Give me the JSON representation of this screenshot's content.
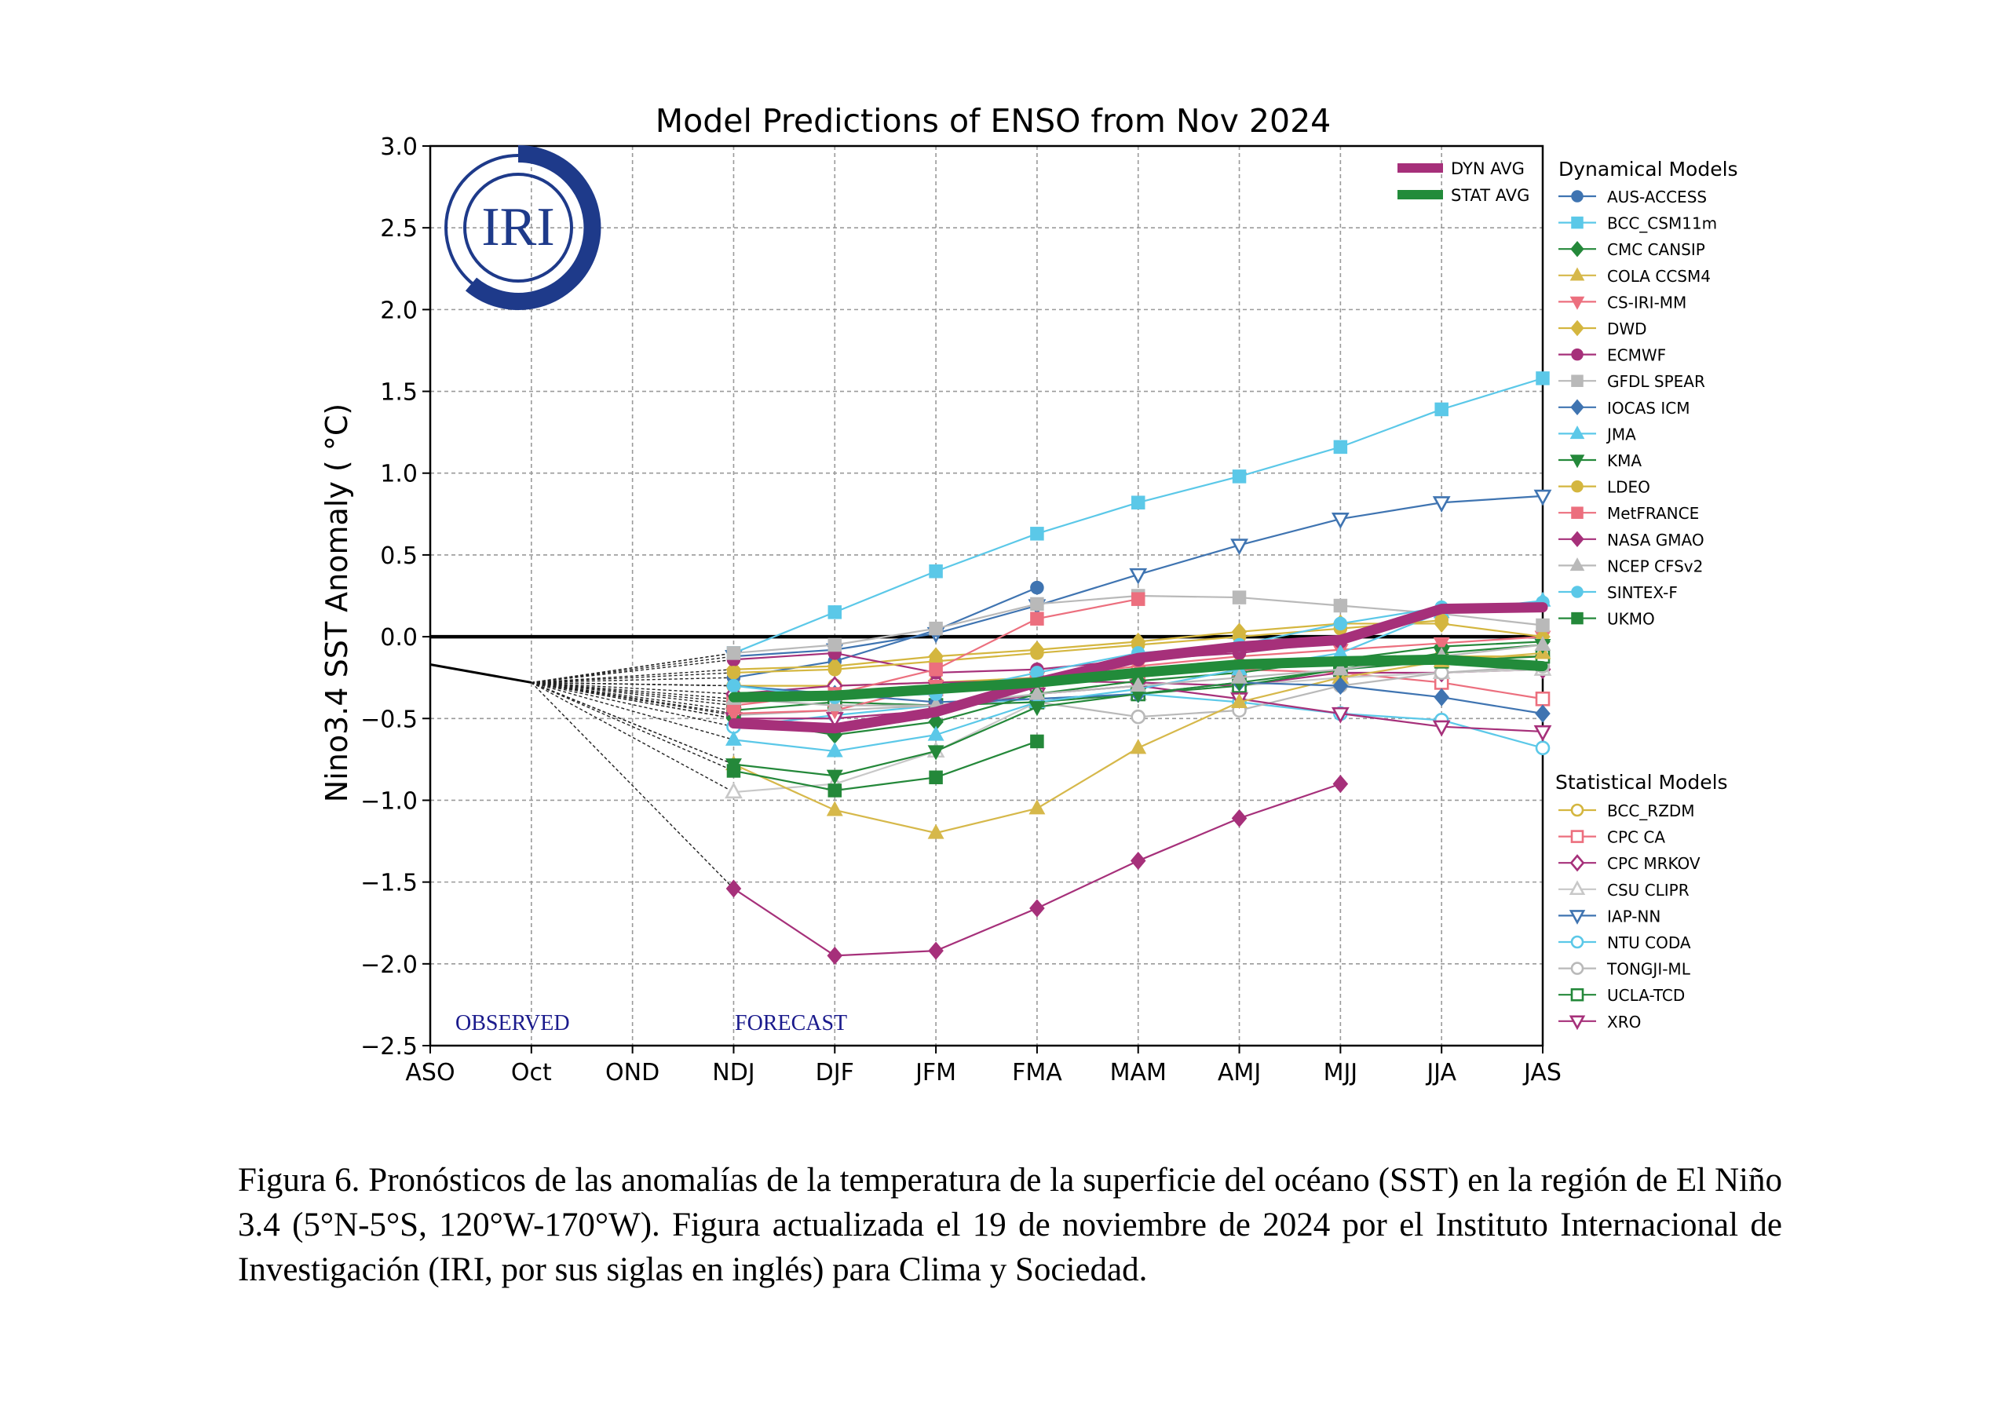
{
  "chart_data": {
    "type": "line",
    "title": "Model Predictions of ENSO from Nov 2024",
    "ylabel": "Nino3.4 SST Anomaly ( °C)",
    "xlabel": "",
    "categories": [
      "ASO",
      "Oct",
      "OND",
      "NDJ",
      "DJF",
      "JFM",
      "FMA",
      "MAM",
      "AMJ",
      "MJJ",
      "JJA",
      "JAS"
    ],
    "ylim": [
      -2.5,
      3.0
    ],
    "yticks": [
      3.0,
      2.5,
      2.0,
      1.5,
      1.0,
      0.5,
      0.0,
      -0.5,
      -1.0,
      -1.5,
      -2.0,
      -2.5
    ],
    "ytick_labels": [
      "3.0",
      "2.5",
      "2.0",
      "1.5",
      "1.0",
      "0.5",
      "0.0",
      "−0.5",
      "−1.0",
      "−1.5",
      "−2.0",
      "−2.5"
    ],
    "grid": true,
    "annotations": {
      "observed": "OBSERVED",
      "forecast": "FORECAST",
      "logo": "IRI"
    },
    "observed": [
      -0.17,
      -0.28
    ],
    "avg_series": [
      {
        "name": "DYN AVG",
        "color": "#a6307a",
        "values": [
          null,
          null,
          null,
          -0.53,
          -0.56,
          -0.46,
          -0.28,
          -0.13,
          -0.06,
          -0.02,
          0.17,
          0.18
        ]
      },
      {
        "name": "STAT AVG",
        "color": "#228b3a",
        "values": [
          null,
          null,
          null,
          -0.37,
          -0.36,
          -0.32,
          -0.28,
          -0.22,
          -0.17,
          -0.15,
          -0.14,
          -0.18
        ]
      }
    ],
    "legend_dynamical_title": "Dynamical Models",
    "legend_statistical_title": "Statistical Models",
    "dynamical": [
      {
        "name": "AUS-ACCESS",
        "color": "#3f74b1",
        "marker": "circle",
        "filled": true,
        "values": [
          null,
          null,
          null,
          -0.25,
          -0.15,
          0.04,
          0.3,
          null,
          null,
          null,
          null,
          null
        ]
      },
      {
        "name": "BCC_CSM11m",
        "color": "#5bc8e8",
        "marker": "square",
        "filled": true,
        "values": [
          null,
          null,
          null,
          -0.1,
          0.15,
          0.4,
          0.63,
          0.82,
          0.98,
          1.16,
          1.39,
          1.58
        ]
      },
      {
        "name": "CMC CANSIP",
        "color": "#24883a",
        "marker": "diamond",
        "filled": true,
        "values": [
          null,
          null,
          null,
          -0.5,
          -0.6,
          -0.52,
          -0.35,
          -0.27,
          -0.22,
          -0.14,
          -0.06,
          -0.03
        ]
      },
      {
        "name": "COLA CCSM4",
        "color": "#d6b84a",
        "marker": "triangle",
        "filled": true,
        "values": [
          null,
          null,
          null,
          -0.78,
          -1.06,
          -1.2,
          -1.05,
          -0.68,
          -0.4,
          -0.25,
          -0.15,
          -0.1
        ]
      },
      {
        "name": "CS-IRI-MM",
        "color": "#ec6f7e",
        "marker": "triangle-down",
        "filled": true,
        "values": [
          null,
          null,
          null,
          -0.47,
          -0.45,
          -0.3,
          -0.25,
          -0.18,
          -0.12,
          -0.08,
          -0.04,
          0.0
        ]
      },
      {
        "name": "DWD",
        "color": "#d4b63f",
        "marker": "diamond",
        "filled": true,
        "values": [
          null,
          null,
          null,
          -0.2,
          -0.18,
          -0.12,
          -0.08,
          -0.03,
          0.03,
          0.08,
          0.08,
          0.0
        ]
      },
      {
        "name": "ECMWF",
        "color": "#a6307a",
        "marker": "circle",
        "filled": true,
        "values": [
          null,
          null,
          null,
          -0.14,
          -0.1,
          -0.22,
          -0.2,
          -0.14,
          -0.1,
          -0.03,
          null,
          null
        ]
      },
      {
        "name": "GFDL SPEAR",
        "color": "#b9b9b9",
        "marker": "square",
        "filled": true,
        "values": [
          null,
          null,
          null,
          -0.1,
          -0.05,
          0.05,
          0.2,
          0.25,
          0.24,
          0.19,
          0.14,
          0.07
        ]
      },
      {
        "name": "IOCAS ICM",
        "color": "#3f74b1",
        "marker": "diamond",
        "filled": true,
        "values": [
          null,
          null,
          null,
          -0.3,
          -0.35,
          -0.4,
          -0.38,
          -0.35,
          -0.28,
          -0.3,
          -0.37,
          -0.47
        ]
      },
      {
        "name": "JMA",
        "color": "#5bc8e8",
        "marker": "triangle",
        "filled": true,
        "values": [
          null,
          null,
          null,
          -0.63,
          -0.7,
          -0.6,
          -0.4,
          -0.32,
          -0.2,
          -0.1,
          0.15,
          0.22
        ]
      },
      {
        "name": "KMA",
        "color": "#24883a",
        "marker": "triangle-down",
        "filled": true,
        "values": [
          null,
          null,
          null,
          -0.78,
          -0.85,
          -0.7,
          -0.43,
          -0.35,
          -0.28,
          -0.2,
          -0.1,
          -0.05
        ]
      },
      {
        "name": "LDEO",
        "color": "#d4b63f",
        "marker": "circle",
        "filled": true,
        "values": [
          null,
          null,
          null,
          -0.22,
          -0.2,
          -0.15,
          -0.1,
          -0.05,
          0.0,
          0.05,
          0.1,
          null
        ]
      },
      {
        "name": "MetFRANCE",
        "color": "#ec6f7e",
        "marker": "square",
        "filled": true,
        "values": [
          null,
          null,
          null,
          -0.42,
          -0.35,
          -0.2,
          0.11,
          0.23,
          null,
          null,
          null,
          null
        ]
      },
      {
        "name": "NASA GMAO",
        "color": "#a6307a",
        "marker": "diamond",
        "filled": true,
        "values": [
          null,
          null,
          null,
          -1.54,
          -1.95,
          -1.92,
          -1.66,
          -1.37,
          -1.11,
          -0.9,
          null,
          null
        ]
      },
      {
        "name": "NCEP CFSv2",
        "color": "#b9b9b9",
        "marker": "triangle",
        "filled": true,
        "values": [
          null,
          null,
          null,
          -0.38,
          -0.42,
          -0.42,
          -0.35,
          -0.3,
          -0.25,
          -0.2,
          -0.12,
          -0.05
        ]
      },
      {
        "name": "SINTEX-F",
        "color": "#5bc8e8",
        "marker": "circle",
        "filled": true,
        "values": [
          null,
          null,
          null,
          -0.3,
          -0.37,
          -0.35,
          -0.22,
          -0.1,
          -0.05,
          0.08,
          0.18,
          0.21
        ]
      },
      {
        "name": "UKMO",
        "color": "#24883a",
        "marker": "square",
        "filled": true,
        "values": [
          null,
          null,
          null,
          -0.82,
          -0.94,
          -0.86,
          -0.64,
          null,
          null,
          null,
          null,
          null
        ]
      }
    ],
    "statistical": [
      {
        "name": "BCC_RZDM",
        "color": "#d4b63f",
        "marker": "circle",
        "filled": false,
        "values": [
          null,
          null,
          null,
          -0.3,
          -0.3,
          -0.28,
          -0.25,
          -0.2,
          -0.17,
          -0.14,
          -0.12,
          -0.12
        ]
      },
      {
        "name": "CPC CA",
        "color": "#ec6f7e",
        "marker": "square",
        "filled": false,
        "values": [
          null,
          null,
          null,
          -0.4,
          -0.38,
          -0.32,
          -0.28,
          -0.22,
          -0.2,
          -0.22,
          -0.28,
          -0.38
        ]
      },
      {
        "name": "CPC MRKOV",
        "color": "#a6307a",
        "marker": "diamond",
        "filled": false,
        "values": [
          null,
          null,
          null,
          -0.35,
          -0.3,
          -0.28,
          -0.27,
          -0.28,
          -0.3,
          -0.22,
          -0.22,
          -0.2
        ]
      },
      {
        "name": "CSU CLIPR",
        "color": "#c8c8c8",
        "marker": "triangle",
        "filled": false,
        "values": [
          null,
          null,
          null,
          -0.95,
          -0.9,
          -0.7,
          -0.4,
          -0.35,
          -0.3,
          -0.25,
          -0.22,
          -0.2
        ]
      },
      {
        "name": "IAP-NN",
        "color": "#3f74b1",
        "marker": "triangle-down",
        "filled": false,
        "values": [
          null,
          null,
          null,
          -0.12,
          -0.08,
          0.02,
          0.19,
          0.38,
          0.56,
          0.72,
          0.82,
          0.86
        ]
      },
      {
        "name": "NTU CODA",
        "color": "#5bc8e8",
        "marker": "circle",
        "filled": false,
        "values": [
          null,
          null,
          null,
          -0.55,
          -0.48,
          -0.42,
          -0.38,
          -0.35,
          -0.4,
          -0.47,
          -0.51,
          -0.68
        ]
      },
      {
        "name": "TONGJI-ML",
        "color": "#b9b9b9",
        "marker": "circle",
        "filled": false,
        "values": [
          null,
          null,
          null,
          -0.48,
          -0.45,
          -0.42,
          -0.4,
          -0.49,
          -0.45,
          -0.3,
          -0.22,
          -0.18
        ]
      },
      {
        "name": "UCLA-TCD",
        "color": "#24883a",
        "marker": "square",
        "filled": false,
        "values": [
          null,
          null,
          null,
          -0.45,
          -0.4,
          -0.42,
          -0.4,
          -0.35,
          -0.3,
          -0.2,
          -0.15,
          -0.12
        ]
      },
      {
        "name": "XRO",
        "color": "#a6307a",
        "marker": "triangle-down",
        "filled": false,
        "values": [
          null,
          null,
          null,
          -0.5,
          -0.5,
          -0.45,
          -0.35,
          -0.3,
          -0.38,
          -0.47,
          -0.55,
          -0.58
        ]
      }
    ]
  },
  "caption": "Figura 6. Pronósticos de las anomalías de la temperatura de la superficie del océano (SST) en la región de El Niño 3.4 (5°N-5°S, 120°W-170°W). Figura actualizada el 19 de noviembre de 2024 por el Instituto Internacional de Investigación (IRI, por sus siglas en inglés) para Clima y Sociedad."
}
